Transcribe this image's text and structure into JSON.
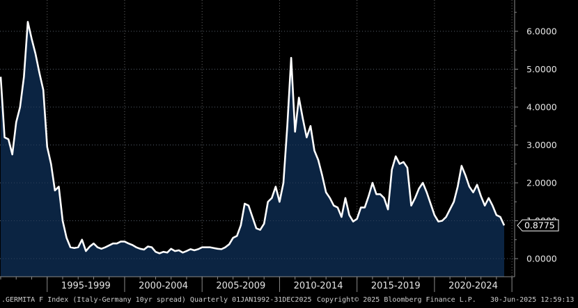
{
  "chart_data": {
    "type": "area",
    "title": "",
    "xlabel": "",
    "ylabel": "",
    "x_start": "1992-Q1",
    "x_end": "2025-Q2",
    "x_ticks": [
      "1995-1999",
      "2000-2004",
      "2005-2009",
      "2010-2014",
      "2015-2019",
      "2020-2024"
    ],
    "y_ticks": [
      "0.0000",
      "1.0000",
      "2.0000",
      "3.0000",
      "4.0000",
      "5.0000",
      "6.0000"
    ],
    "ylim": [
      -0.5,
      6.7
    ],
    "grid": true,
    "last_value": "0.8775",
    "series": [
      {
        "name": "",
        "values": [
          4.8,
          3.2,
          3.15,
          2.75,
          3.6,
          4.0,
          4.8,
          6.25,
          5.8,
          5.4,
          4.9,
          4.45,
          2.95,
          2.5,
          1.8,
          1.9,
          1.0,
          0.55,
          0.3,
          0.28,
          0.3,
          0.5,
          0.2,
          0.32,
          0.4,
          0.3,
          0.26,
          0.3,
          0.35,
          0.4,
          0.4,
          0.45,
          0.45,
          0.4,
          0.36,
          0.3,
          0.26,
          0.24,
          0.32,
          0.3,
          0.18,
          0.14,
          0.18,
          0.16,
          0.26,
          0.2,
          0.22,
          0.16,
          0.2,
          0.25,
          0.22,
          0.25,
          0.3,
          0.3,
          0.3,
          0.28,
          0.26,
          0.25,
          0.3,
          0.38,
          0.55,
          0.6,
          0.88,
          1.45,
          1.4,
          1.1,
          0.8,
          0.76,
          0.92,
          1.5,
          1.6,
          1.9,
          1.5,
          2.0,
          3.5,
          5.3,
          3.35,
          4.25,
          3.7,
          3.2,
          3.5,
          2.85,
          2.6,
          2.2,
          1.75,
          1.6,
          1.4,
          1.35,
          1.1,
          1.6,
          1.15,
          0.98,
          1.05,
          1.35,
          1.35,
          1.65,
          2.0,
          1.7,
          1.7,
          1.6,
          1.3,
          2.35,
          2.7,
          2.5,
          2.55,
          2.4,
          1.4,
          1.6,
          1.85,
          2.0,
          1.75,
          1.45,
          1.15,
          0.98,
          1.0,
          1.1,
          1.3,
          1.5,
          1.9,
          2.45,
          2.2,
          1.9,
          1.75,
          1.95,
          1.65,
          1.4,
          1.6,
          1.4,
          1.15,
          1.1,
          0.8775
        ]
      }
    ]
  },
  "footer": {
    "index_label": ".GERMITA F Index (Italy-Germany 10yr spread) Quarterly 01JAN1992-31DEC2025",
    "copyright": "Copyright© 2025 Bloomberg Finance L.P.",
    "timestamp": "30-Jun-2025 12:59:13"
  },
  "colors": {
    "background": "#000000",
    "area_fill": "#0b2442",
    "line": "#ffffff",
    "grid": "#6a6a6a",
    "axis": "#8a8a8a"
  }
}
